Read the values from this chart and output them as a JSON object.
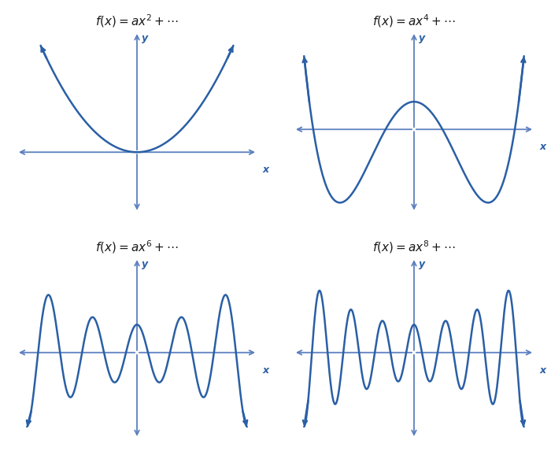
{
  "bg_color": "#ffffff",
  "curve_color": "#2a5fa5",
  "axis_color": "#5b7fbf",
  "title_color": "#1a1a1a",
  "exponent_color": "#cc0000",
  "label_color": "#2a5fa5",
  "exponents": [
    "2",
    "4",
    "6",
    "8"
  ],
  "axis_lw": 1.3,
  "curve_lw": 1.8,
  "arrow_scale": 10
}
